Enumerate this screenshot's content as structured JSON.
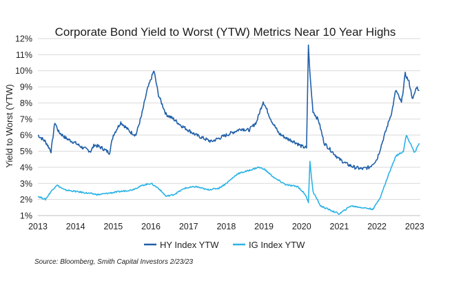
{
  "chart_data": {
    "type": "line",
    "title": "Corporate Bond Yield to Worst (YTW) Metrics Near 10 Year Highs",
    "ylabel": "Yield to Worst (YTW)",
    "xlabel": "",
    "ylim": [
      1,
      12
    ],
    "xlim": [
      2013.0,
      2023.15
    ],
    "grid": true,
    "legend_position": "bottom",
    "y_ticks": [
      "1%",
      "2%",
      "3%",
      "4%",
      "5%",
      "6%",
      "7%",
      "8%",
      "9%",
      "10%",
      "11%",
      "12%"
    ],
    "x_ticks": [
      "2013",
      "2014",
      "2015",
      "2016",
      "2017",
      "2018",
      "2019",
      "2020",
      "2021",
      "2022",
      "2023"
    ],
    "series": [
      {
        "name": "HY Index YTW",
        "color": "#1f5fa8",
        "x": [
          2013.0,
          2013.2,
          2013.35,
          2013.45,
          2013.55,
          2013.75,
          2014.0,
          2014.2,
          2014.4,
          2014.5,
          2014.7,
          2014.9,
          2015.0,
          2015.2,
          2015.45,
          2015.6,
          2015.75,
          2015.9,
          2016.08,
          2016.2,
          2016.4,
          2016.6,
          2016.8,
          2017.0,
          2017.2,
          2017.4,
          2017.6,
          2017.8,
          2018.0,
          2018.2,
          2018.4,
          2018.6,
          2018.8,
          2018.98,
          2019.2,
          2019.4,
          2019.6,
          2019.8,
          2020.0,
          2020.13,
          2020.18,
          2020.22,
          2020.3,
          2020.45,
          2020.6,
          2020.8,
          2021.0,
          2021.2,
          2021.4,
          2021.6,
          2021.8,
          2022.0,
          2022.2,
          2022.4,
          2022.5,
          2022.65,
          2022.75,
          2022.85,
          2022.95,
          2023.05,
          2023.12
        ],
        "values": [
          6.0,
          5.6,
          5.0,
          6.8,
          6.2,
          5.8,
          5.5,
          5.2,
          5.0,
          5.4,
          5.2,
          4.9,
          6.0,
          6.8,
          6.2,
          6.0,
          7.2,
          8.8,
          10.0,
          8.5,
          7.3,
          7.0,
          6.6,
          6.3,
          6.0,
          5.8,
          5.6,
          5.8,
          6.0,
          6.2,
          6.4,
          6.3,
          6.8,
          8.1,
          6.9,
          6.1,
          5.8,
          5.6,
          5.3,
          5.2,
          11.6,
          9.8,
          7.5,
          6.9,
          5.5,
          5.0,
          4.5,
          4.2,
          4.0,
          3.9,
          4.0,
          4.5,
          6.0,
          7.5,
          8.8,
          8.0,
          9.8,
          9.3,
          8.2,
          9.0,
          8.8
        ]
      },
      {
        "name": "IG Index YTW",
        "color": "#2bb3e6",
        "x": [
          2013.0,
          2013.2,
          2013.35,
          2013.5,
          2013.7,
          2014.0,
          2014.3,
          2014.6,
          2014.9,
          2015.2,
          2015.5,
          2015.8,
          2016.0,
          2016.2,
          2016.4,
          2016.6,
          2016.9,
          2017.2,
          2017.5,
          2017.8,
          2018.0,
          2018.3,
          2018.6,
          2018.85,
          2019.0,
          2019.3,
          2019.6,
          2019.9,
          2020.1,
          2020.18,
          2020.22,
          2020.3,
          2020.5,
          2020.8,
          2021.0,
          2021.3,
          2021.6,
          2021.9,
          2022.1,
          2022.3,
          2022.5,
          2022.7,
          2022.78,
          2022.9,
          2023.0,
          2023.12
        ],
        "values": [
          2.2,
          2.0,
          2.5,
          2.9,
          2.6,
          2.5,
          2.4,
          2.3,
          2.4,
          2.5,
          2.6,
          2.9,
          3.0,
          2.7,
          2.2,
          2.3,
          2.7,
          2.8,
          2.6,
          2.7,
          3.0,
          3.6,
          3.8,
          4.0,
          3.9,
          3.3,
          2.9,
          2.8,
          2.3,
          1.8,
          4.4,
          2.5,
          1.6,
          1.3,
          1.1,
          1.6,
          1.5,
          1.4,
          2.2,
          3.5,
          4.7,
          5.0,
          6.0,
          5.4,
          4.9,
          5.5
        ]
      }
    ],
    "source": "Source: Bloomberg, Smith Capital Investors 2/23/23"
  }
}
